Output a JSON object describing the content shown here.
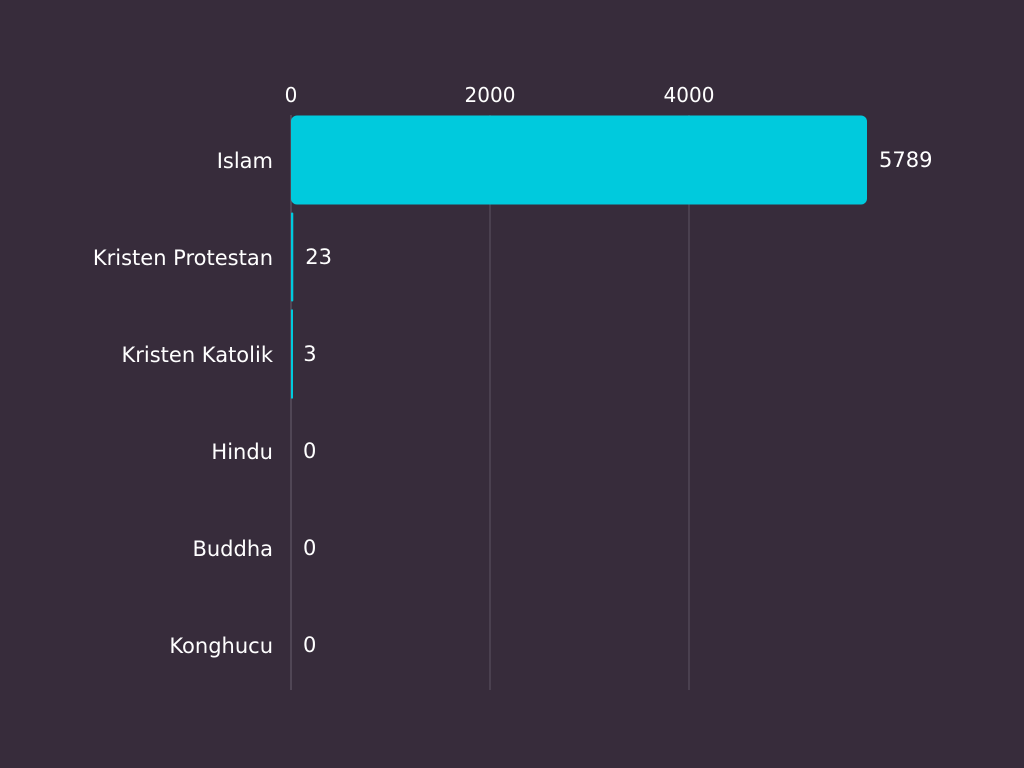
{
  "chart_data": {
    "type": "bar",
    "orientation": "horizontal",
    "title": "",
    "xlabel": "",
    "ylabel": "",
    "categories": [
      "Islam",
      "Kristen Protestan",
      "Kristen Katolik",
      "Hindu",
      "Buddha",
      "Konghucu"
    ],
    "values": [
      5789,
      23,
      3,
      0,
      0,
      0
    ],
    "xlim": [
      0,
      6000
    ],
    "x_ticks": [
      0,
      2000,
      4000
    ],
    "x_tick_labels": [
      "0",
      "2000",
      "4000"
    ],
    "value_labels": [
      "5789",
      "23",
      "3",
      "0",
      "0",
      "0"
    ],
    "grid": true,
    "x_axis_position": "top",
    "legend": "none",
    "colors": {
      "background": "#372c3b",
      "bar": "#00cadd",
      "text": "#ffffff",
      "grid": "#5e5363"
    }
  }
}
